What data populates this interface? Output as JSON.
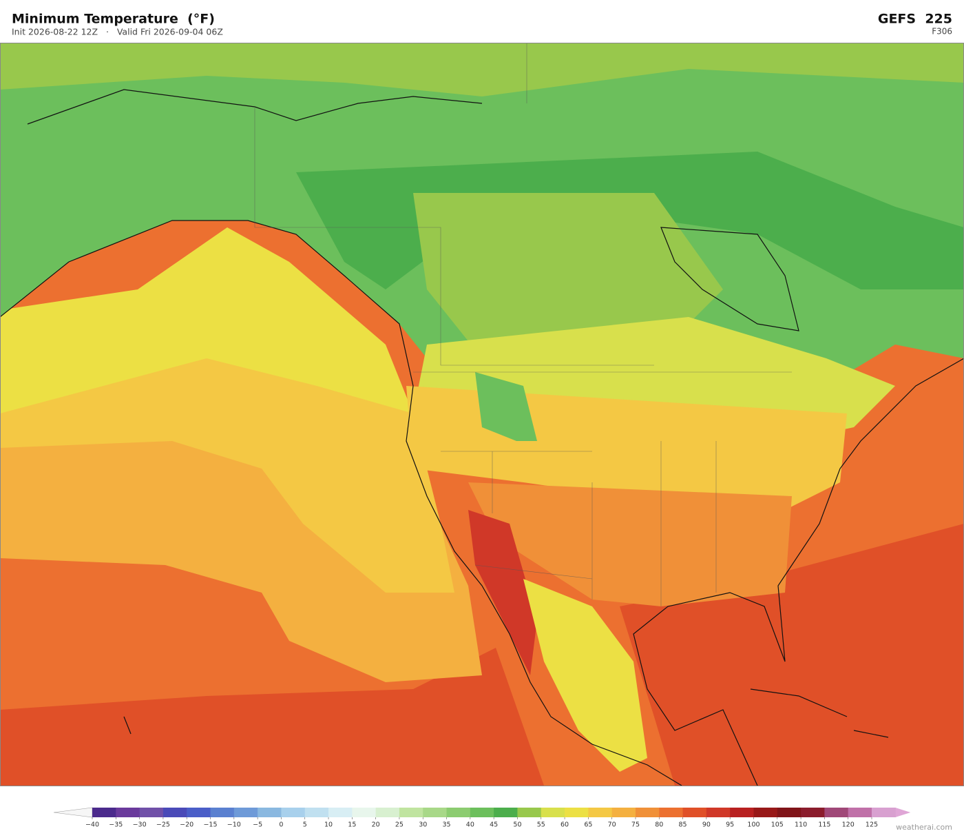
{
  "header": {
    "title": "Minimum Temperature  (°F)",
    "subtitle": "Init 2026-08-22 12Z   ·   Valid Fri 2026-09-04 06Z",
    "model": "GEFS  225",
    "forecast_hour": "F306"
  },
  "colorbar": {
    "ticks": [
      {
        "value": -40,
        "label": "−40"
      },
      {
        "value": -35,
        "label": "−35"
      },
      {
        "value": -30,
        "label": "−30"
      },
      {
        "value": -25,
        "label": "−25"
      },
      {
        "value": -20,
        "label": "−20"
      },
      {
        "value": -15,
        "label": "−15"
      },
      {
        "value": -10,
        "label": "−10"
      },
      {
        "value": -5,
        "label": "−5"
      },
      0,
      5,
      10,
      15,
      20,
      25,
      30,
      35,
      40,
      45,
      50,
      55,
      60,
      65,
      70,
      75,
      80,
      85,
      90,
      95,
      100,
      105,
      110,
      115,
      120,
      125
    ],
    "colors": [
      "#4b2a8c",
      "#6a3a9c",
      "#7050a8",
      "#4a4ab8",
      "#4a5ec8",
      "#5a80d0",
      "#6e9ad8",
      "#8ab8e0",
      "#a8d0ec",
      "#c0e0f0",
      "#d8eef4",
      "#e8f6ec",
      "#d8f0d0",
      "#c0e4a0",
      "#a8d888",
      "#8ccc70",
      "#6cbf5c",
      "#4cae4c",
      "#98c84c",
      "#d8e04c",
      "#ece044",
      "#f4c844",
      "#f4b040",
      "#f09038",
      "#ec7030",
      "#e05028",
      "#d03828",
      "#b82020",
      "#981818",
      "#801418",
      "#8b1c2c",
      "#a04878",
      "#c070a8",
      "#d8a0d0"
    ],
    "under_color": "#f6f6f6",
    "over_color": "#dfa6d6"
  },
  "watermark": "weatherai.com"
}
